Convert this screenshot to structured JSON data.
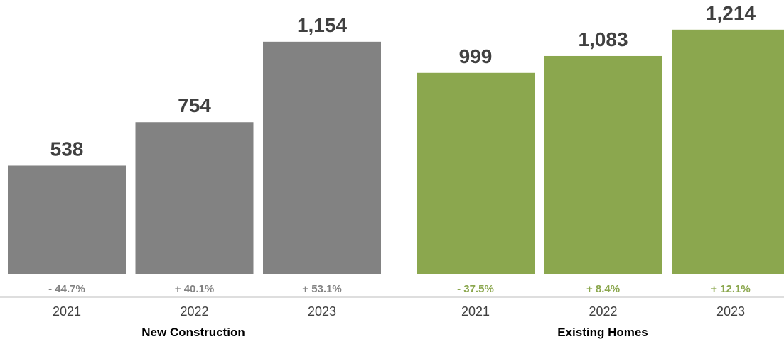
{
  "colors": {
    "new_construction": "#828282",
    "existing_homes": "#8ba74e",
    "new_construction_pct": "#828282",
    "existing_homes_pct": "#8ba74e",
    "axis_line": "#d4d4d4",
    "value_text": "#404040"
  },
  "chart_data": {
    "type": "bar",
    "title": "",
    "xlabel": "",
    "ylabel": "",
    "ylim": [
      0,
      1300
    ],
    "grid": false,
    "groups": [
      {
        "name": "New Construction",
        "color_key": "new_construction",
        "categories": [
          "2021",
          "2022",
          "2023"
        ],
        "values": [
          538,
          754,
          1154
        ],
        "value_labels": [
          "538",
          "754",
          "1,154"
        ],
        "pct_changes": [
          "- 44.7%",
          "+ 40.1%",
          "+ 53.1%"
        ]
      },
      {
        "name": "Existing Homes",
        "color_key": "existing_homes",
        "categories": [
          "2021",
          "2022",
          "2023"
        ],
        "values": [
          999,
          1083,
          1214
        ],
        "value_labels": [
          "999",
          "1,083",
          "1,214"
        ],
        "pct_changes": [
          "- 37.5%",
          "+ 8.4%",
          "+ 12.1%"
        ]
      }
    ]
  }
}
